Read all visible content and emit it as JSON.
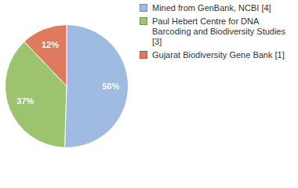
{
  "chart_data": {
    "type": "pie",
    "categories": [
      "Mined from GenBank, NCBI [4]",
      "Paul Hebert Centre for DNA Barcoding and Biodiversity Studies [3]",
      "Gujarat Biodiversity Gene Bank [1]"
    ],
    "values": [
      50,
      37,
      12
    ],
    "value_labels": [
      "50%",
      "37%",
      "12%"
    ],
    "colors": [
      "#9fbbe2",
      "#9cc46e",
      "#e07a5e"
    ],
    "data_labels": true,
    "legend": "right"
  }
}
